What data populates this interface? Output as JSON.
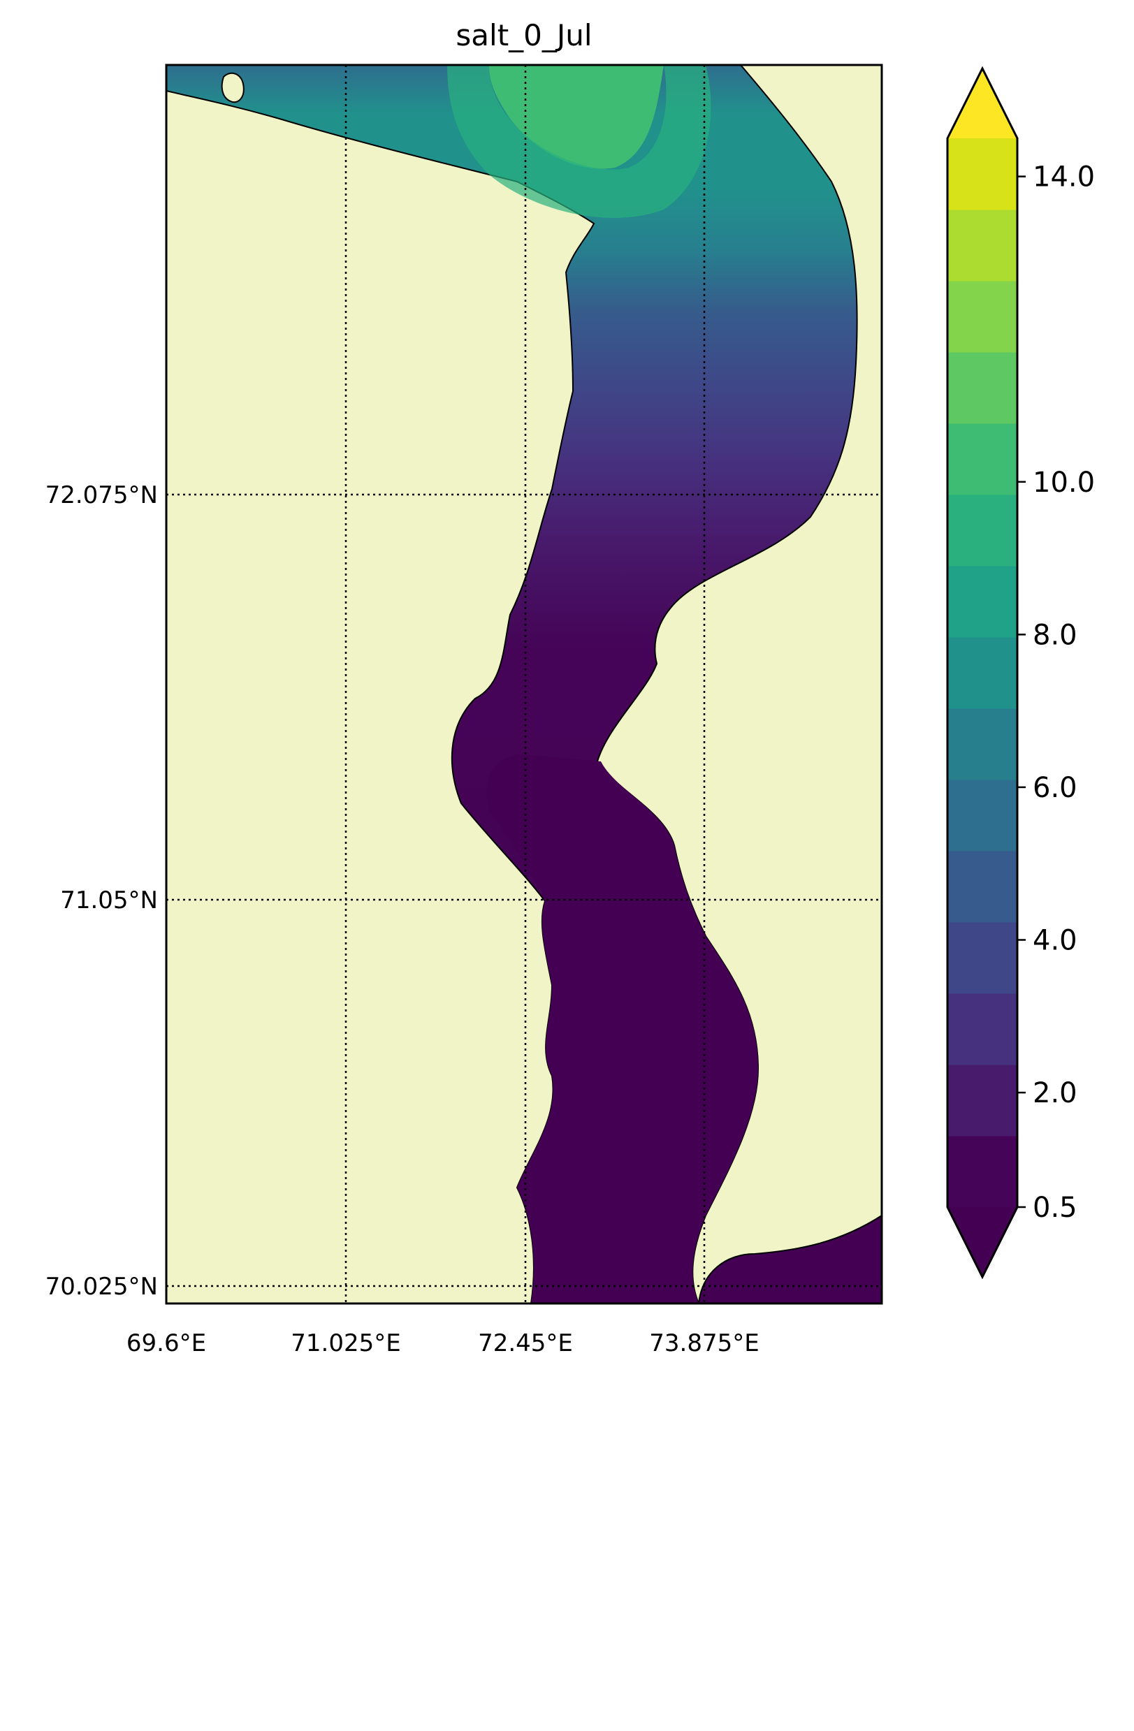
{
  "title": "salt_0_Jul",
  "map": {
    "land_color": "#f0f4c6",
    "coast_color": "#000000",
    "grid_style": "dotted",
    "lon_ticks": [
      "69.6°E",
      "71.025°E",
      "72.45°E",
      "73.875°E"
    ],
    "lat_ticks": [
      "72.075°N",
      "71.05°N",
      "70.025°N"
    ]
  },
  "colorbar": {
    "extend": "both",
    "levels": [
      0.5,
      1.5,
      2.5,
      3.5,
      4.5,
      5.5,
      6.5,
      7.5,
      8.5,
      9.5,
      10.5,
      11.5,
      12.5,
      13.5,
      14.5
    ],
    "colors": [
      "#450457",
      "#481b6d",
      "#46317e",
      "#3f4788",
      "#365b8c",
      "#2e6e8e",
      "#277f8e",
      "#21918c",
      "#1fa287",
      "#2ab07f",
      "#3fbc73",
      "#5ec962",
      "#84d44b",
      "#addc30",
      "#d8e219"
    ],
    "under_color": "#440154",
    "over_color": "#fde725",
    "tick_labels": [
      "0.5",
      "2.0",
      "4.0",
      "6.0",
      "8.0",
      "10.0",
      "14.0"
    ]
  }
}
